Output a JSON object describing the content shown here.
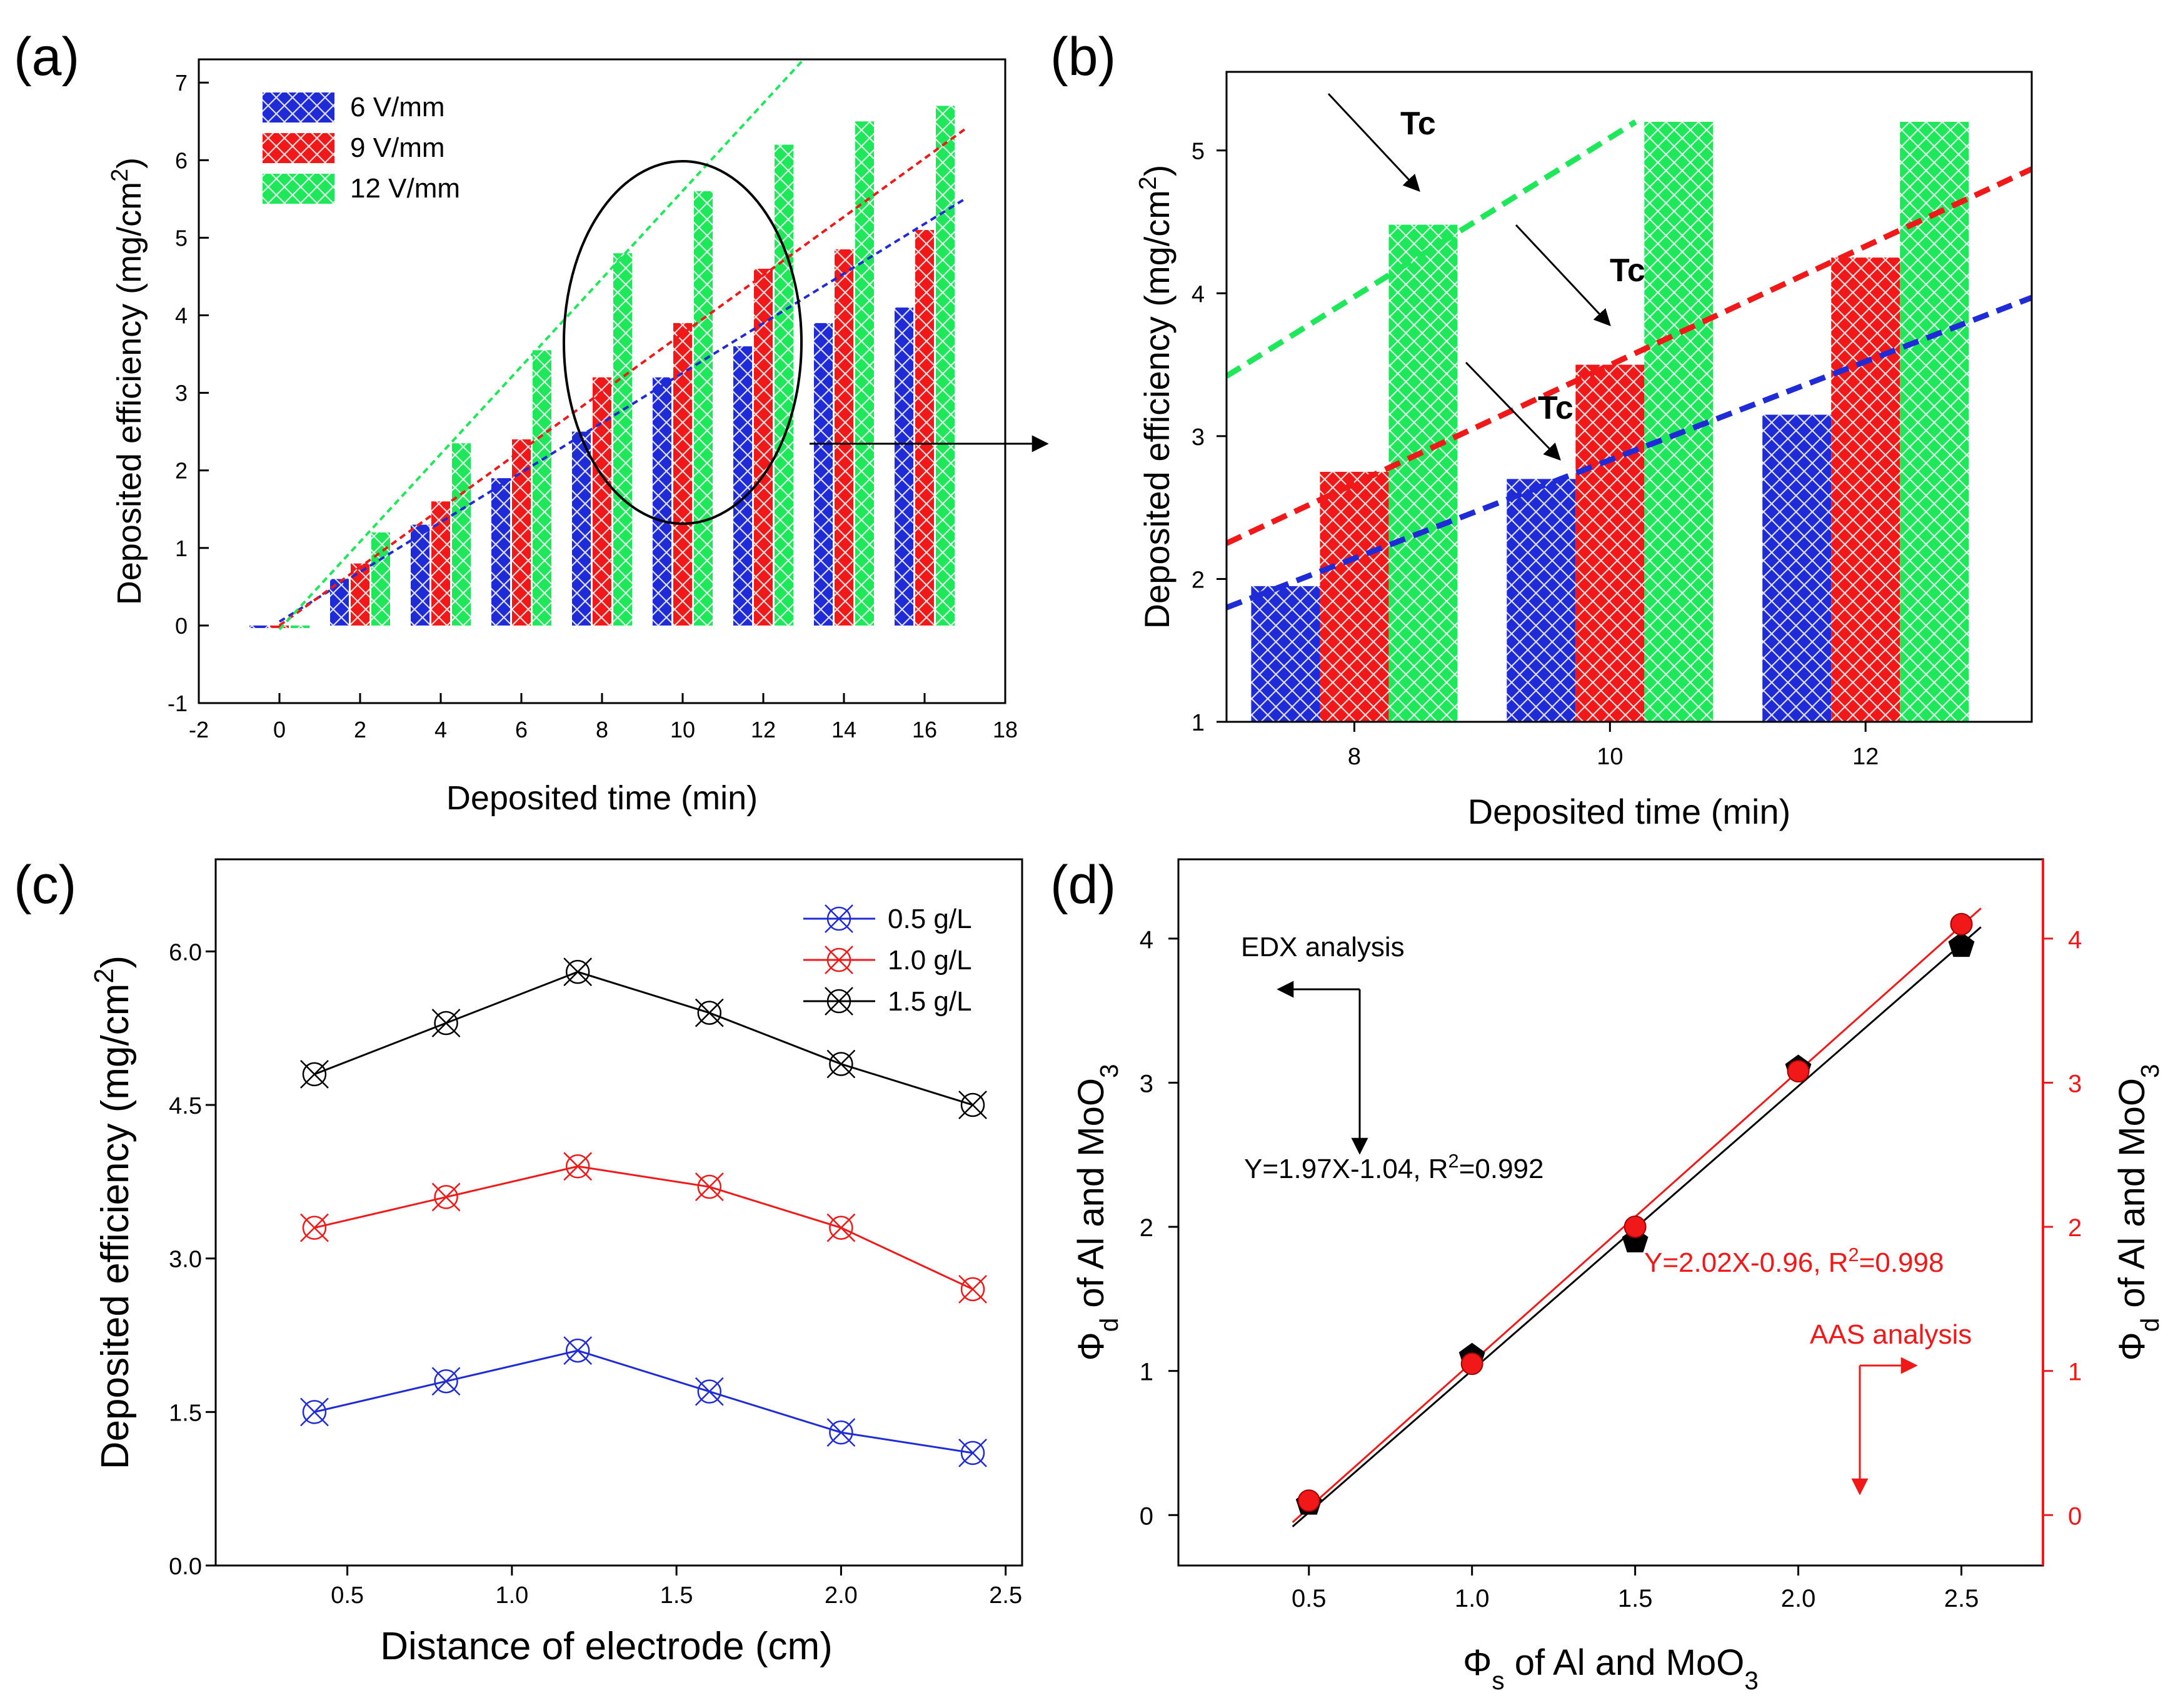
{
  "colors": {
    "blue": "#1f2bd6",
    "red": "#f01818",
    "green": "#1ee85a",
    "black": "#000000",
    "redAxis": "#f01818"
  },
  "chart_data": [
    {
      "panel": "(a)",
      "type": "bar",
      "xlabel": "Deposited time (min)",
      "ylabel": "Deposited efficiency (mg/cm2)",
      "xlim": [
        -2,
        18
      ],
      "ylim": [
        -1,
        7.3
      ],
      "xticks": [
        "-2",
        "0",
        "2",
        "4",
        "6",
        "8",
        "10",
        "12",
        "14",
        "16",
        "18"
      ],
      "yticks": [
        "-1",
        "0",
        "1",
        "2",
        "3",
        "4",
        "5",
        "6",
        "7"
      ],
      "categories": [
        0,
        2,
        4,
        6,
        8,
        10,
        12,
        14,
        16
      ],
      "series": [
        {
          "name": "6  V/mm",
          "color_key": "blue",
          "values": [
            0.0,
            0.6,
            1.3,
            1.9,
            2.5,
            3.2,
            3.6,
            3.9,
            4.1
          ],
          "trend": {
            "x": [
              0,
              17
            ],
            "y": [
              0.05,
              5.5
            ]
          }
        },
        {
          "name": "9  V/mm",
          "color_key": "red",
          "values": [
            0.0,
            0.8,
            1.6,
            2.4,
            3.2,
            3.9,
            4.6,
            4.85,
            5.1
          ],
          "trend": {
            "x": [
              0,
              17
            ],
            "y": [
              0.0,
              6.4
            ]
          }
        },
        {
          "name": "12 V/mm",
          "color_key": "green",
          "values": [
            0.0,
            1.2,
            2.35,
            3.55,
            4.8,
            5.6,
            6.2,
            6.5,
            6.7
          ],
          "trend": {
            "x": [
              0,
              13
            ],
            "y": [
              -0.05,
              7.3
            ]
          }
        }
      ],
      "annotation": "ellipse around t = 8-12 min with arrow to panel (b)"
    },
    {
      "panel": "(b)",
      "type": "bar",
      "xlabel": "Deposited time (min)",
      "ylabel": "Deposited efficiency (mg/cm2)",
      "xlim": [
        7,
        13.3
      ],
      "ylim": [
        1,
        5.55
      ],
      "xticks": [
        "8",
        "10",
        "12"
      ],
      "yticks": [
        "1",
        "2",
        "3",
        "4",
        "5"
      ],
      "categories": [
        8,
        10,
        12
      ],
      "series": [
        {
          "name": "6 V/mm",
          "color_key": "blue",
          "values": [
            1.95,
            2.7,
            3.15
          ],
          "trend": {
            "x": [
              7,
              13.3
            ],
            "y": [
              1.8,
              3.97
            ]
          }
        },
        {
          "name": "9 V/mm",
          "color_key": "red",
          "values": [
            2.75,
            3.5,
            4.25
          ],
          "trend": {
            "x": [
              7,
              13.3
            ],
            "y": [
              2.25,
              4.87
            ]
          }
        },
        {
          "name": "12 V/mm",
          "color_key": "green",
          "values": [
            4.48,
            5.2,
            5.2
          ],
          "trend": {
            "x": [
              7,
              10.2
            ],
            "y": [
              3.42,
              5.2
            ]
          }
        }
      ],
      "annotations": [
        {
          "text": "Tc",
          "color_key": "green"
        },
        {
          "text": "Tc",
          "color_key": "red"
        },
        {
          "text": "Tc",
          "color_key": "blue"
        }
      ]
    },
    {
      "panel": "(c)",
      "type": "line",
      "xlabel": "Distance of electrode (cm)",
      "ylabel": "Deposited efficiency (mg/cm2)",
      "xlim": [
        0.1,
        2.55
      ],
      "ylim": [
        0.0,
        6.9
      ],
      "xticks": [
        "0.5",
        "1.0",
        "1.5",
        "2.0",
        "2.5"
      ],
      "yticks": [
        "0.0",
        "1.5",
        "3.0",
        "4.5",
        "6.0"
      ],
      "x": [
        0.4,
        0.8,
        1.2,
        1.6,
        2.0,
        2.4
      ],
      "series": [
        {
          "name": "0.5 g/L",
          "color_key": "blue",
          "values": [
            1.5,
            1.8,
            2.1,
            1.7,
            1.3,
            1.1
          ]
        },
        {
          "name": "1.0 g/L",
          "color_key": "red",
          "values": [
            3.3,
            3.6,
            3.9,
            3.7,
            3.3,
            2.7
          ]
        },
        {
          "name": "1.5 g/L",
          "color_key": "black",
          "values": [
            4.8,
            5.3,
            5.8,
            5.4,
            4.9,
            4.5
          ]
        }
      ]
    },
    {
      "panel": "(d)",
      "type": "scatter",
      "xlabel": "Φs of Al and MoO3",
      "ylabel_left": "Φd of Al and MoO3",
      "ylabel_right": "Φd of Al and MoO3",
      "xlim": [
        0.1,
        2.75
      ],
      "ylim": [
        -0.35,
        4.55
      ],
      "xticks": [
        "0.5",
        "1.0",
        "1.5",
        "2.0",
        "2.5"
      ],
      "yticks_left": [
        "0",
        "1",
        "2",
        "3",
        "4"
      ],
      "yticks_right": [
        "0",
        "1",
        "2",
        "3",
        "4"
      ],
      "x": [
        0.5,
        1.0,
        1.5,
        2.0,
        2.5
      ],
      "series": [
        {
          "name": "EDX analysis",
          "color_key": "black",
          "marker": "pentagon",
          "values": [
            0.08,
            1.1,
            1.9,
            3.1,
            3.95
          ],
          "fit": {
            "x": [
              0.45,
              2.56
            ],
            "y": [
              -0.08,
              4.08
            ]
          }
        },
        {
          "name": "AAS analysis",
          "color_key": "red",
          "marker": "circle",
          "values": [
            0.1,
            1.05,
            2.0,
            3.08,
            4.1
          ],
          "fit": {
            "x": [
              0.45,
              2.56
            ],
            "y": [
              -0.05,
              4.21
            ]
          }
        }
      ],
      "annotations": [
        {
          "text": "EDX analysis",
          "color_key": "black"
        },
        {
          "text": "Y=1.97X-1.04, R²=0.992",
          "color_key": "black"
        },
        {
          "text": "Y=2.02X-0.96, R²=0.998",
          "color_key": "red"
        },
        {
          "text": "AAS analysis",
          "color_key": "red"
        }
      ]
    }
  ],
  "panel_labels": [
    "(a)",
    "(b)",
    "(c)",
    "(d)"
  ],
  "legend_a": [
    "6  V/mm",
    "9  V/mm",
    "12 V/mm"
  ],
  "legend_c": [
    "0.5 g/L",
    "1.0 g/L",
    "1.5 g/L"
  ]
}
